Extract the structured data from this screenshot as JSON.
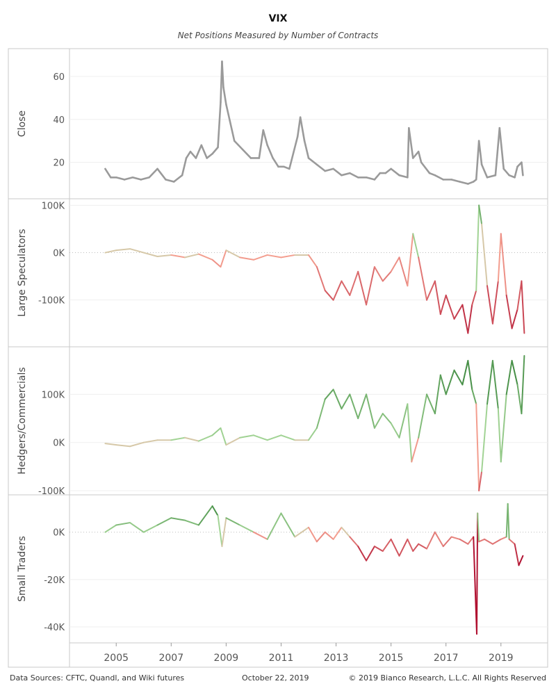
{
  "chart_data": {
    "type": "line",
    "title": "VIX",
    "subtitle": "Net Positions Measured by Number of Contracts",
    "x_ticks": [
      "2005",
      "2007",
      "2009",
      "2011",
      "2013",
      "2015",
      "2017",
      "2019"
    ],
    "x_range": [
      2003.3,
      2020.7
    ],
    "panels": [
      {
        "ylabel": "Close",
        "ylim": [
          5,
          71
        ],
        "yticks": [
          20,
          40,
          60
        ],
        "ytick_labels": [
          "20",
          "40",
          "60"
        ],
        "color_mode": "gray",
        "zero_line": false,
        "series": {
          "x": [
            2004.6,
            2004.8,
            2005.0,
            2005.3,
            2005.6,
            2005.9,
            2006.2,
            2006.5,
            2006.8,
            2007.1,
            2007.4,
            2007.55,
            2007.7,
            2007.9,
            2008.1,
            2008.3,
            2008.5,
            2008.7,
            2008.8,
            2008.85,
            2008.9,
            2009.0,
            2009.3,
            2009.6,
            2009.9,
            2010.2,
            2010.35,
            2010.5,
            2010.7,
            2010.9,
            2011.1,
            2011.3,
            2011.6,
            2011.7,
            2011.85,
            2012.0,
            2012.3,
            2012.6,
            2012.9,
            2013.2,
            2013.5,
            2013.8,
            2014.1,
            2014.4,
            2014.6,
            2014.8,
            2015.0,
            2015.3,
            2015.6,
            2015.65,
            2015.8,
            2016.0,
            2016.1,
            2016.4,
            2016.6,
            2016.9,
            2017.2,
            2017.5,
            2017.8,
            2018.0,
            2018.1,
            2018.2,
            2018.3,
            2018.5,
            2018.8,
            2018.95,
            2019.1,
            2019.3,
            2019.5,
            2019.6,
            2019.75,
            2019.8
          ],
          "y": [
            17,
            13,
            13,
            12,
            13,
            12,
            13,
            17,
            12,
            11,
            14,
            22,
            25,
            22,
            28,
            22,
            24,
            27,
            48,
            67,
            55,
            47,
            30,
            26,
            22,
            22,
            35,
            28,
            22,
            18,
            18,
            17,
            32,
            41,
            30,
            22,
            19,
            16,
            17,
            14,
            15,
            13,
            13,
            12,
            15,
            15,
            17,
            14,
            13,
            36,
            22,
            25,
            20,
            15,
            14,
            12,
            12,
            11,
            10,
            11,
            12,
            30,
            19,
            13,
            14,
            36,
            17,
            14,
            13,
            18,
            20,
            14
          ]
        }
      },
      {
        "ylabel": "Large Speculators",
        "ylim": [
          -190000,
          105000
        ],
        "yticks": [
          -100000,
          0,
          100000
        ],
        "ytick_labels": [
          "-100K",
          "0K",
          "100K"
        ],
        "color_mode": "redgreen",
        "color_scale": 180000,
        "zero_line": true,
        "series": {
          "x": [
            2004.6,
            2005.0,
            2005.5,
            2006.0,
            2006.5,
            2007.0,
            2007.5,
            2008.0,
            2008.5,
            2008.8,
            2009.0,
            2009.5,
            2010.0,
            2010.5,
            2011.0,
            2011.5,
            2012.0,
            2012.3,
            2012.6,
            2012.9,
            2013.2,
            2013.5,
            2013.8,
            2014.1,
            2014.4,
            2014.7,
            2015.0,
            2015.3,
            2015.6,
            2015.8,
            2016.0,
            2016.3,
            2016.6,
            2016.8,
            2017.0,
            2017.3,
            2017.6,
            2017.8,
            2017.95,
            2018.1,
            2018.2,
            2018.3,
            2018.5,
            2018.7,
            2018.9,
            2019.0,
            2019.2,
            2019.4,
            2019.6,
            2019.75,
            2019.85
          ],
          "y": [
            0,
            5000,
            8000,
            0,
            -8000,
            -5000,
            -10000,
            -3000,
            -15000,
            -30000,
            5000,
            -10000,
            -15000,
            -5000,
            -10000,
            -5000,
            -5000,
            -30000,
            -80000,
            -100000,
            -60000,
            -90000,
            -40000,
            -110000,
            -30000,
            -60000,
            -40000,
            -10000,
            -70000,
            40000,
            -10000,
            -100000,
            -60000,
            -130000,
            -90000,
            -140000,
            -110000,
            -170000,
            -110000,
            -80000,
            100000,
            60000,
            -70000,
            -150000,
            -60000,
            40000,
            -90000,
            -160000,
            -120000,
            -60000,
            -170000
          ]
        }
      },
      {
        "ylabel": "Hedgers/Commercials",
        "ylim": [
          -100000,
          190000
        ],
        "yticks": [
          -100000,
          0,
          100000
        ],
        "ytick_labels": [
          "-100K",
          "0K",
          "100K"
        ],
        "color_mode": "redgreen",
        "color_scale": 180000,
        "zero_line": false,
        "series": {
          "x": [
            2004.6,
            2005.0,
            2005.5,
            2006.0,
            2006.5,
            2007.0,
            2007.5,
            2008.0,
            2008.5,
            2008.8,
            2009.0,
            2009.5,
            2010.0,
            2010.5,
            2011.0,
            2011.5,
            2012.0,
            2012.3,
            2012.6,
            2012.9,
            2013.2,
            2013.5,
            2013.8,
            2014.1,
            2014.4,
            2014.7,
            2015.0,
            2015.3,
            2015.6,
            2015.75,
            2016.0,
            2016.3,
            2016.6,
            2016.8,
            2017.0,
            2017.3,
            2017.6,
            2017.8,
            2017.95,
            2018.1,
            2018.2,
            2018.3,
            2018.5,
            2018.7,
            2018.9,
            2019.0,
            2019.2,
            2019.4,
            2019.6,
            2019.75,
            2019.85
          ],
          "y": [
            -2000,
            -5000,
            -8000,
            0,
            5000,
            5000,
            10000,
            3000,
            15000,
            30000,
            -5000,
            10000,
            15000,
            5000,
            15000,
            5000,
            5000,
            30000,
            90000,
            110000,
            70000,
            100000,
            50000,
            100000,
            30000,
            60000,
            40000,
            10000,
            80000,
            -40000,
            10000,
            100000,
            60000,
            140000,
            100000,
            150000,
            120000,
            170000,
            110000,
            80000,
            -100000,
            -60000,
            80000,
            170000,
            70000,
            -40000,
            100000,
            170000,
            120000,
            60000,
            180000
          ]
        }
      },
      {
        "ylabel": "Small Traders",
        "ylim": [
          -45000,
          14000
        ],
        "yticks": [
          -40000,
          -20000,
          0
        ],
        "ytick_labels": [
          "-40K",
          "-20K",
          "0K"
        ],
        "color_mode": "redgreen",
        "color_scale": 12000,
        "zero_line": true,
        "series": {
          "x": [
            2004.6,
            2005.0,
            2005.5,
            2006.0,
            2006.5,
            2007.0,
            2007.5,
            2008.0,
            2008.5,
            2008.7,
            2008.85,
            2009.0,
            2009.5,
            2010.0,
            2010.5,
            2011.0,
            2011.5,
            2012.0,
            2012.3,
            2012.6,
            2012.9,
            2013.2,
            2013.5,
            2013.8,
            2014.1,
            2014.4,
            2014.7,
            2015.0,
            2015.3,
            2015.6,
            2015.8,
            2016.0,
            2016.3,
            2016.6,
            2016.9,
            2017.2,
            2017.5,
            2017.8,
            2018.0,
            2018.12,
            2018.15,
            2018.2,
            2018.4,
            2018.7,
            2019.0,
            2019.2,
            2019.25,
            2019.3,
            2019.5,
            2019.65,
            2019.8
          ],
          "y": [
            0,
            3000,
            4000,
            0,
            3000,
            6000,
            5000,
            3000,
            11000,
            7000,
            -6000,
            6000,
            3000,
            0,
            -3000,
            8000,
            -2000,
            2000,
            -4000,
            0,
            -3000,
            2000,
            -2000,
            -6000,
            -12000,
            -6000,
            -8000,
            -3000,
            -10000,
            -3000,
            -8000,
            -5000,
            -7000,
            0,
            -6000,
            -2000,
            -3000,
            -5000,
            -2000,
            -43000,
            8000,
            -4000,
            -3000,
            -5000,
            -3000,
            -2000,
            12000,
            -3000,
            -5000,
            -14000,
            -10000
          ]
        }
      }
    ]
  },
  "footer": {
    "source": "Data Sources: CFTC, Quandl, and Wiki futures",
    "date": "October 22, 2019",
    "copyright": "© 2019 Bianco Research, L.L.C. All Rights Reserved"
  },
  "colors": {
    "gray_line": "#9a9a9a",
    "neutral": "#d6c8a8",
    "green_light": "#a8d89a",
    "green_dark": "#2e7d32",
    "red_light": "#f7a594",
    "red_dark": "#b01030",
    "border": "#c8c8c8",
    "gridline": "#efefef"
  }
}
